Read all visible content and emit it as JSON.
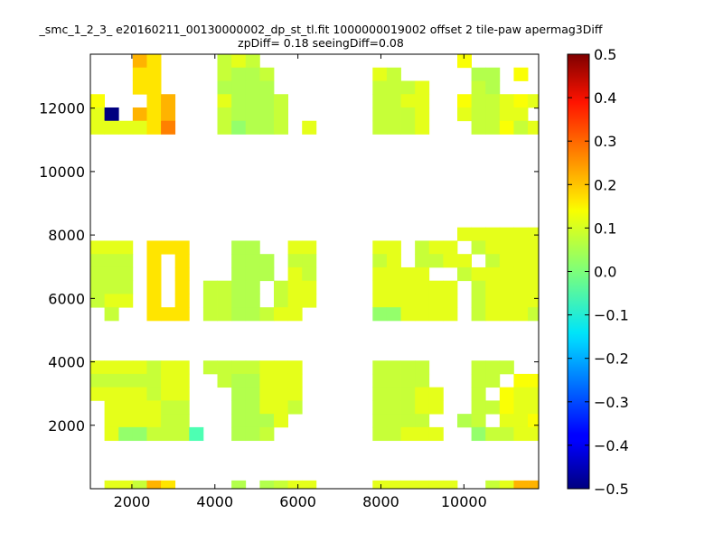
{
  "chart_data": {
    "type": "heatmap",
    "title_line1": "_smc_1_2_3_ e20160211_00130000002_dp_st_tl.fit 1000000019002 offset 2 tile-paw apermag3Diff",
    "title_line2": "zpDiff= 0.18 seeingDiff=0.08",
    "xlim": [
      1000,
      11800
    ],
    "ylim": [
      0,
      13700
    ],
    "xticks": [
      2000,
      4000,
      6000,
      8000,
      10000
    ],
    "yticks": [
      2000,
      4000,
      6000,
      8000,
      10000,
      12000
    ],
    "colorbar": {
      "colormap": "jet",
      "vmin": -0.5,
      "vmax": 0.5,
      "ticks": [
        "0.5",
        "0.4",
        "0.3",
        "0.2",
        "0.1",
        "0.0",
        "−0.1",
        "−0.2",
        "−0.3",
        "−0.4",
        "−0.5"
      ],
      "tick_values": [
        0.5,
        0.4,
        0.3,
        0.2,
        0.1,
        0.0,
        -0.1,
        -0.2,
        -0.3,
        -0.4,
        -0.5
      ]
    },
    "grid": {
      "x0": 1000,
      "dx": 340,
      "ncols": 32,
      "y0": 0,
      "dy": 420,
      "nrows": 33,
      "row_order": "top-to-bottom",
      "legend": {
        ".": null,
        "A": 0.05,
        "B": 0.07,
        "C": 0.1,
        "D": 0.12,
        "E": 0.15,
        "F": 0.2,
        "G": 0.25,
        "H": 0.3,
        "I": 0.02,
        "J": -0.05,
        "K": -0.5
      },
      "rows": [
        "...FE....BCB..............D.....",
        "...EE....BAAB.......CB.....AA.D.",
        "...EE....AAAA.......BBBC...BA...",
        "D...EF...CAAAB......BBCC..DBBCDC",
        "CK.FEF...BAAAB......BBBC..CBBCC.",
        "CCCCEG...BIAAB.C....BBBC...BBDBC",
        "................................",
        "................................",
        "................................",
        "................................",
        "................................",
        "................................",
        "................................",
        "..........................CCCCCC",
        "CCC.EEE...AA..CC....CC.BCC.BCCCC",
        "BBB.E.E...AAA.BB....BC.BBCC.BCCC",
        "BBB.E.E...AAA.CB....CCCC..BCCCCC",
        "BBB.E.E.BBAA.BCC....CCCCCC.BCCCC",
        "BCC.E.E.BBAA.BCC....CCCCCC.BCCCC",
        ".B..EEE.BBAABCC.....IICCCC.BCCCB",
        "................................",
        "................................",
        "................................",
        "CCCCBCC.BBBBCCC.....BBBB...BBB..",
        "BBBBBCC..BAACCC.....BBBB...BB.DD",
        "CCCCBCC...AACCC.....BBBCC..B.DCC",
        ".CCCCBB...AACCB.....BBBCC..BBDCC",
        ".CCCCBB...AAAC......BBBB..AB.CCD",
        ".CIIBBBJ..AAB.......BBCCC..IBBCC",
        "................................",
        "................................",
        "................................",
        ".CCBFE....A.ABCC....CCCCCC..BCFF"
      ]
    }
  }
}
